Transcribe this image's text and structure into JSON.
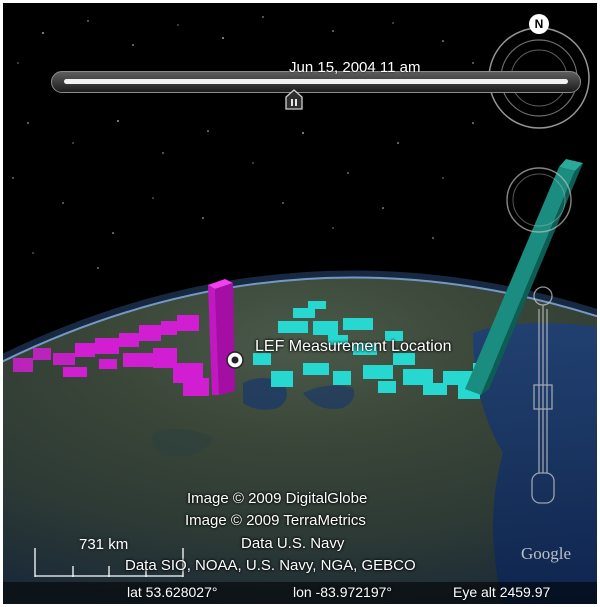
{
  "timeline": {
    "date_label": "Jun 15, 2004  11 am"
  },
  "compass": {
    "north_label": "N"
  },
  "placemark": {
    "label": "LEF Measurement Location"
  },
  "attribution": {
    "line1": "Image © 2009 DigitalGlobe",
    "line2": "Image © 2009 TerraMetrics",
    "line3": "Data U.S. Navy",
    "line4": "Data SIO, NOAA, U.S. Navy, NGA, GEBCO"
  },
  "scale": {
    "label": "731 km"
  },
  "brand": {
    "logo_text": "Google"
  },
  "status": {
    "lat": "lat  53.628027°",
    "lon": "lon  -83.972197°",
    "eye_alt": "Eye alt  2459.97"
  },
  "colors": {
    "magenta": "#d21ed2",
    "cyan": "#26d8d0",
    "teal": "#157d72",
    "space": "#000000",
    "atmosphere": "#5aa0ff"
  },
  "icons": [
    "north-compass-icon",
    "pause-icon",
    "look-joystick-icon",
    "zoom-slider-icon",
    "placemark-icon"
  ]
}
